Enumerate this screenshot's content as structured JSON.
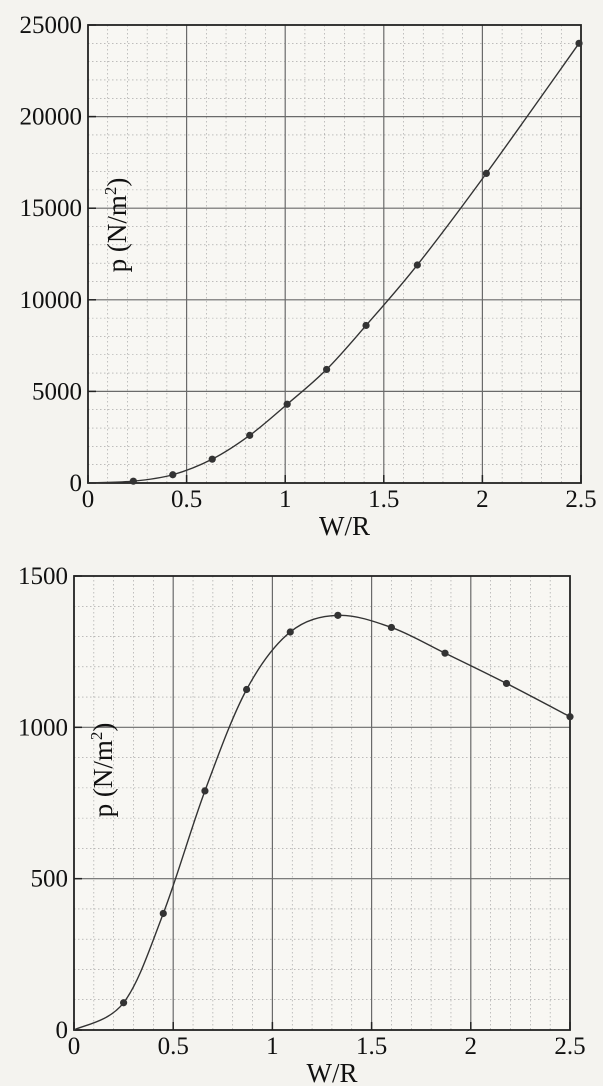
{
  "chart_data": [
    {
      "type": "line",
      "xlabel": "W/R",
      "ylabel": "p (N/m",
      "ylabel_sup": "2",
      "ylabel_close": ")",
      "xlim": [
        0,
        2.5
      ],
      "ylim": [
        0,
        25000
      ],
      "xticks": [
        "0",
        "0.5",
        "1",
        "1.5",
        "2",
        "2.5"
      ],
      "yticks": [
        "0",
        "5000",
        "10000",
        "15000",
        "20000",
        "25000"
      ],
      "grid": true,
      "series": [
        {
          "x": [
            0.23,
            0.43,
            0.63,
            0.82,
            1.01,
            1.21,
            1.41,
            1.67,
            2.02,
            2.49
          ],
          "y": [
            100,
            450,
            1300,
            2600,
            4300,
            6200,
            8600,
            11900,
            16900,
            24000
          ]
        }
      ]
    },
    {
      "type": "line",
      "xlabel": "W/R",
      "ylabel": "p (N/m",
      "ylabel_sup": "2",
      "ylabel_close": ")",
      "xlim": [
        0,
        2.5
      ],
      "ylim": [
        0,
        1500
      ],
      "xticks": [
        "0",
        "0.5",
        "1",
        "1.5",
        "2",
        "2.5"
      ],
      "yticks": [
        "0",
        "500",
        "1000",
        "1500"
      ],
      "grid": true,
      "series": [
        {
          "x": [
            0.25,
            0.45,
            0.66,
            0.87,
            1.09,
            1.33,
            1.6,
            1.87,
            2.18,
            2.5
          ],
          "y": [
            90,
            385,
            790,
            1125,
            1315,
            1370,
            1330,
            1245,
            1145,
            1035
          ]
        }
      ]
    }
  ]
}
